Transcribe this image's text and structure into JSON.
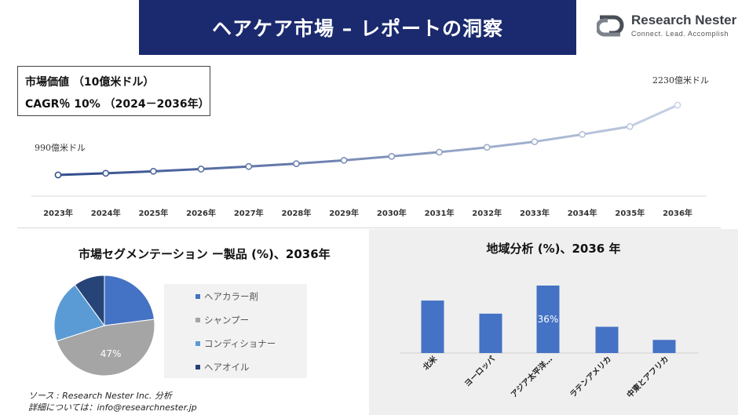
{
  "header": {
    "title": "ヘアケア市場 – レポートの洞察"
  },
  "logo": {
    "name": "Research Nester",
    "tagline": "Connect. Lead. Accomplish",
    "icon": "rn-logo-icon"
  },
  "info_box": {
    "line1": "市場価値 （10億米ドル）",
    "line2": "CAGR％ 10% （2024－2036年）"
  },
  "pie_section": {
    "title": "市場セグメンテーション ー製品 (%)、2036年",
    "legend": [
      {
        "label": "ヘアカラー剤",
        "color": "#4472c4"
      },
      {
        "label": "シャンプー",
        "color": "#a5a5a5"
      },
      {
        "label": "コンディショナー",
        "color": "#5b9bd5"
      },
      {
        "label": "ヘアオイル",
        "color": "#264478"
      }
    ]
  },
  "region_section": {
    "title": "地域分析 (%)、2036 年"
  },
  "source": {
    "line1": "ソース : Research Nester Inc. 分析",
    "line2": "詳細については：info@researchnester.jp"
  },
  "chart_data": [
    {
      "type": "line",
      "x": [
        "2023年",
        "2024年",
        "2025年",
        "2026年",
        "2027年",
        "2028年",
        "2029年",
        "2030年",
        "2031年",
        "2032年",
        "2033年",
        "2034年",
        "2035年",
        "2036年"
      ],
      "values": [
        990,
        1020,
        1055,
        1095,
        1140,
        1190,
        1250,
        1320,
        1395,
        1480,
        1580,
        1710,
        1850,
        2230
      ],
      "annotations": [
        {
          "text": "990億米ドル",
          "index": 0
        },
        {
          "text": "2230億米ドル",
          "index": 13
        }
      ],
      "color_start": "#2e4a8a",
      "color_end": "#c9d3e6"
    },
    {
      "type": "pie",
      "categories": [
        "ヘアカラー剤",
        "シャンプー",
        "コンディショナー",
        "ヘアオイル"
      ],
      "values": [
        23,
        47,
        20,
        10
      ],
      "data_labels": [
        {
          "category": "シャンプー",
          "text": "47%"
        }
      ],
      "colors": [
        "#4472c4",
        "#a5a5a5",
        "#5b9bd5",
        "#264478"
      ]
    },
    {
      "type": "bar",
      "categories": [
        "北米",
        "ヨーロッパ",
        "アジア太平洋…",
        "ラテンアメリカ",
        "中東とアフリカ"
      ],
      "values": [
        28,
        21,
        36,
        14,
        7
      ],
      "data_labels": [
        {
          "category": "アジア太平洋…",
          "text": "36%"
        }
      ],
      "color": "#4472c4"
    }
  ]
}
